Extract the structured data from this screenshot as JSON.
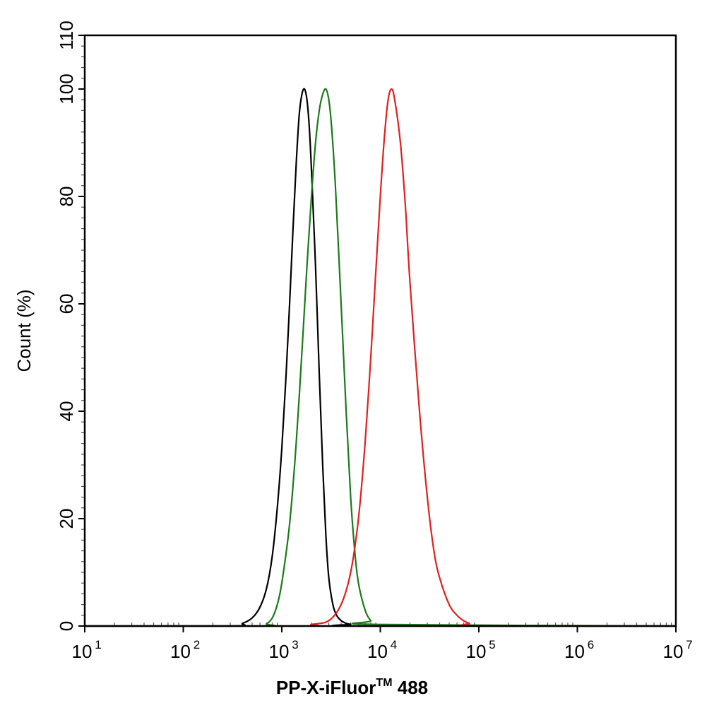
{
  "chart_data": {
    "type": "line",
    "title": "",
    "xlabel": "PP-X-iFluor",
    "xlabel_superscript": "TM",
    "xlabel_suffix": " 488",
    "ylabel": "Count  (%)",
    "xscale": "log",
    "xlim": [
      10,
      10000000
    ],
    "ylim": [
      0,
      110
    ],
    "x_ticks": [
      {
        "base": "10",
        "exp": "1"
      },
      {
        "base": "10",
        "exp": "2"
      },
      {
        "base": "10",
        "exp": "3"
      },
      {
        "base": "10",
        "exp": "4"
      },
      {
        "base": "10",
        "exp": "5"
      },
      {
        "base": "10",
        "exp": "6"
      },
      {
        "base": "10",
        "exp": "7"
      }
    ],
    "y_ticks": [
      "0",
      "20",
      "40",
      "60",
      "80",
      "100",
      "110"
    ],
    "y_tick_values": [
      0,
      20,
      40,
      60,
      80,
      100,
      110
    ],
    "grid": false,
    "legend": "none",
    "series": [
      {
        "color": "#000000",
        "x": [
          10,
          300,
          400,
          500,
          600,
          700,
          800,
          900,
          1000,
          1100,
          1200,
          1300,
          1400,
          1500,
          1600,
          1700,
          1800,
          1900,
          2000,
          2200,
          2400,
          2600,
          2800,
          3000,
          3300,
          3600,
          4000,
          4500,
          5000,
          6000,
          10000000
        ],
        "y": [
          0,
          0,
          0.5,
          1.5,
          3.5,
          7,
          13,
          22,
          33,
          46,
          60,
          74,
          86,
          95,
          99,
          100,
          98,
          93,
          85,
          67,
          47,
          30,
          17,
          9,
          4,
          2,
          1,
          0.5,
          0.3,
          0,
          0
        ]
      },
      {
        "color": "#1a7a1a",
        "x": [
          10,
          600,
          700,
          800,
          900,
          1000,
          1200,
          1400,
          1600,
          1800,
          2000,
          2200,
          2400,
          2600,
          2800,
          3000,
          3200,
          3500,
          4000,
          4500,
          5000,
          5500,
          6000,
          7000,
          8000,
          9000,
          10000000
        ],
        "y": [
          0,
          0,
          0.4,
          1.5,
          4,
          8,
          19,
          34,
          51,
          67,
          80,
          90,
          96,
          99,
          100,
          98,
          93,
          82,
          60,
          40,
          24,
          14,
          8,
          3,
          1,
          0.3,
          0
        ]
      },
      {
        "color": "#e02020",
        "x": [
          10,
          1500,
          2000,
          3000,
          4000,
          5000,
          6000,
          7000,
          8000,
          9000,
          10000,
          11000,
          12000,
          13000,
          14000,
          16000,
          18000,
          20000,
          25000,
          30000,
          35000,
          40000,
          50000,
          60000,
          70000,
          80000,
          100000,
          10000000
        ],
        "y": [
          0,
          0,
          0.3,
          1,
          4,
          10,
          20,
          34,
          50,
          66,
          80,
          91,
          98,
          100,
          98,
          90,
          78,
          64,
          40,
          24,
          14,
          9,
          4,
          2,
          1,
          0.5,
          0,
          0
        ]
      }
    ]
  }
}
